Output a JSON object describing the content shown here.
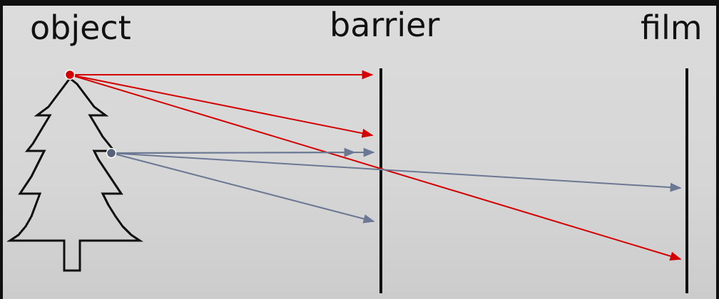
{
  "labels": {
    "object": "object",
    "barrier": "barrier",
    "film": "film"
  },
  "colors": {
    "background": "#d8d8d8",
    "red_ray": "#d40000",
    "blue_ray": "#6b7893",
    "ink": "#111111"
  }
}
